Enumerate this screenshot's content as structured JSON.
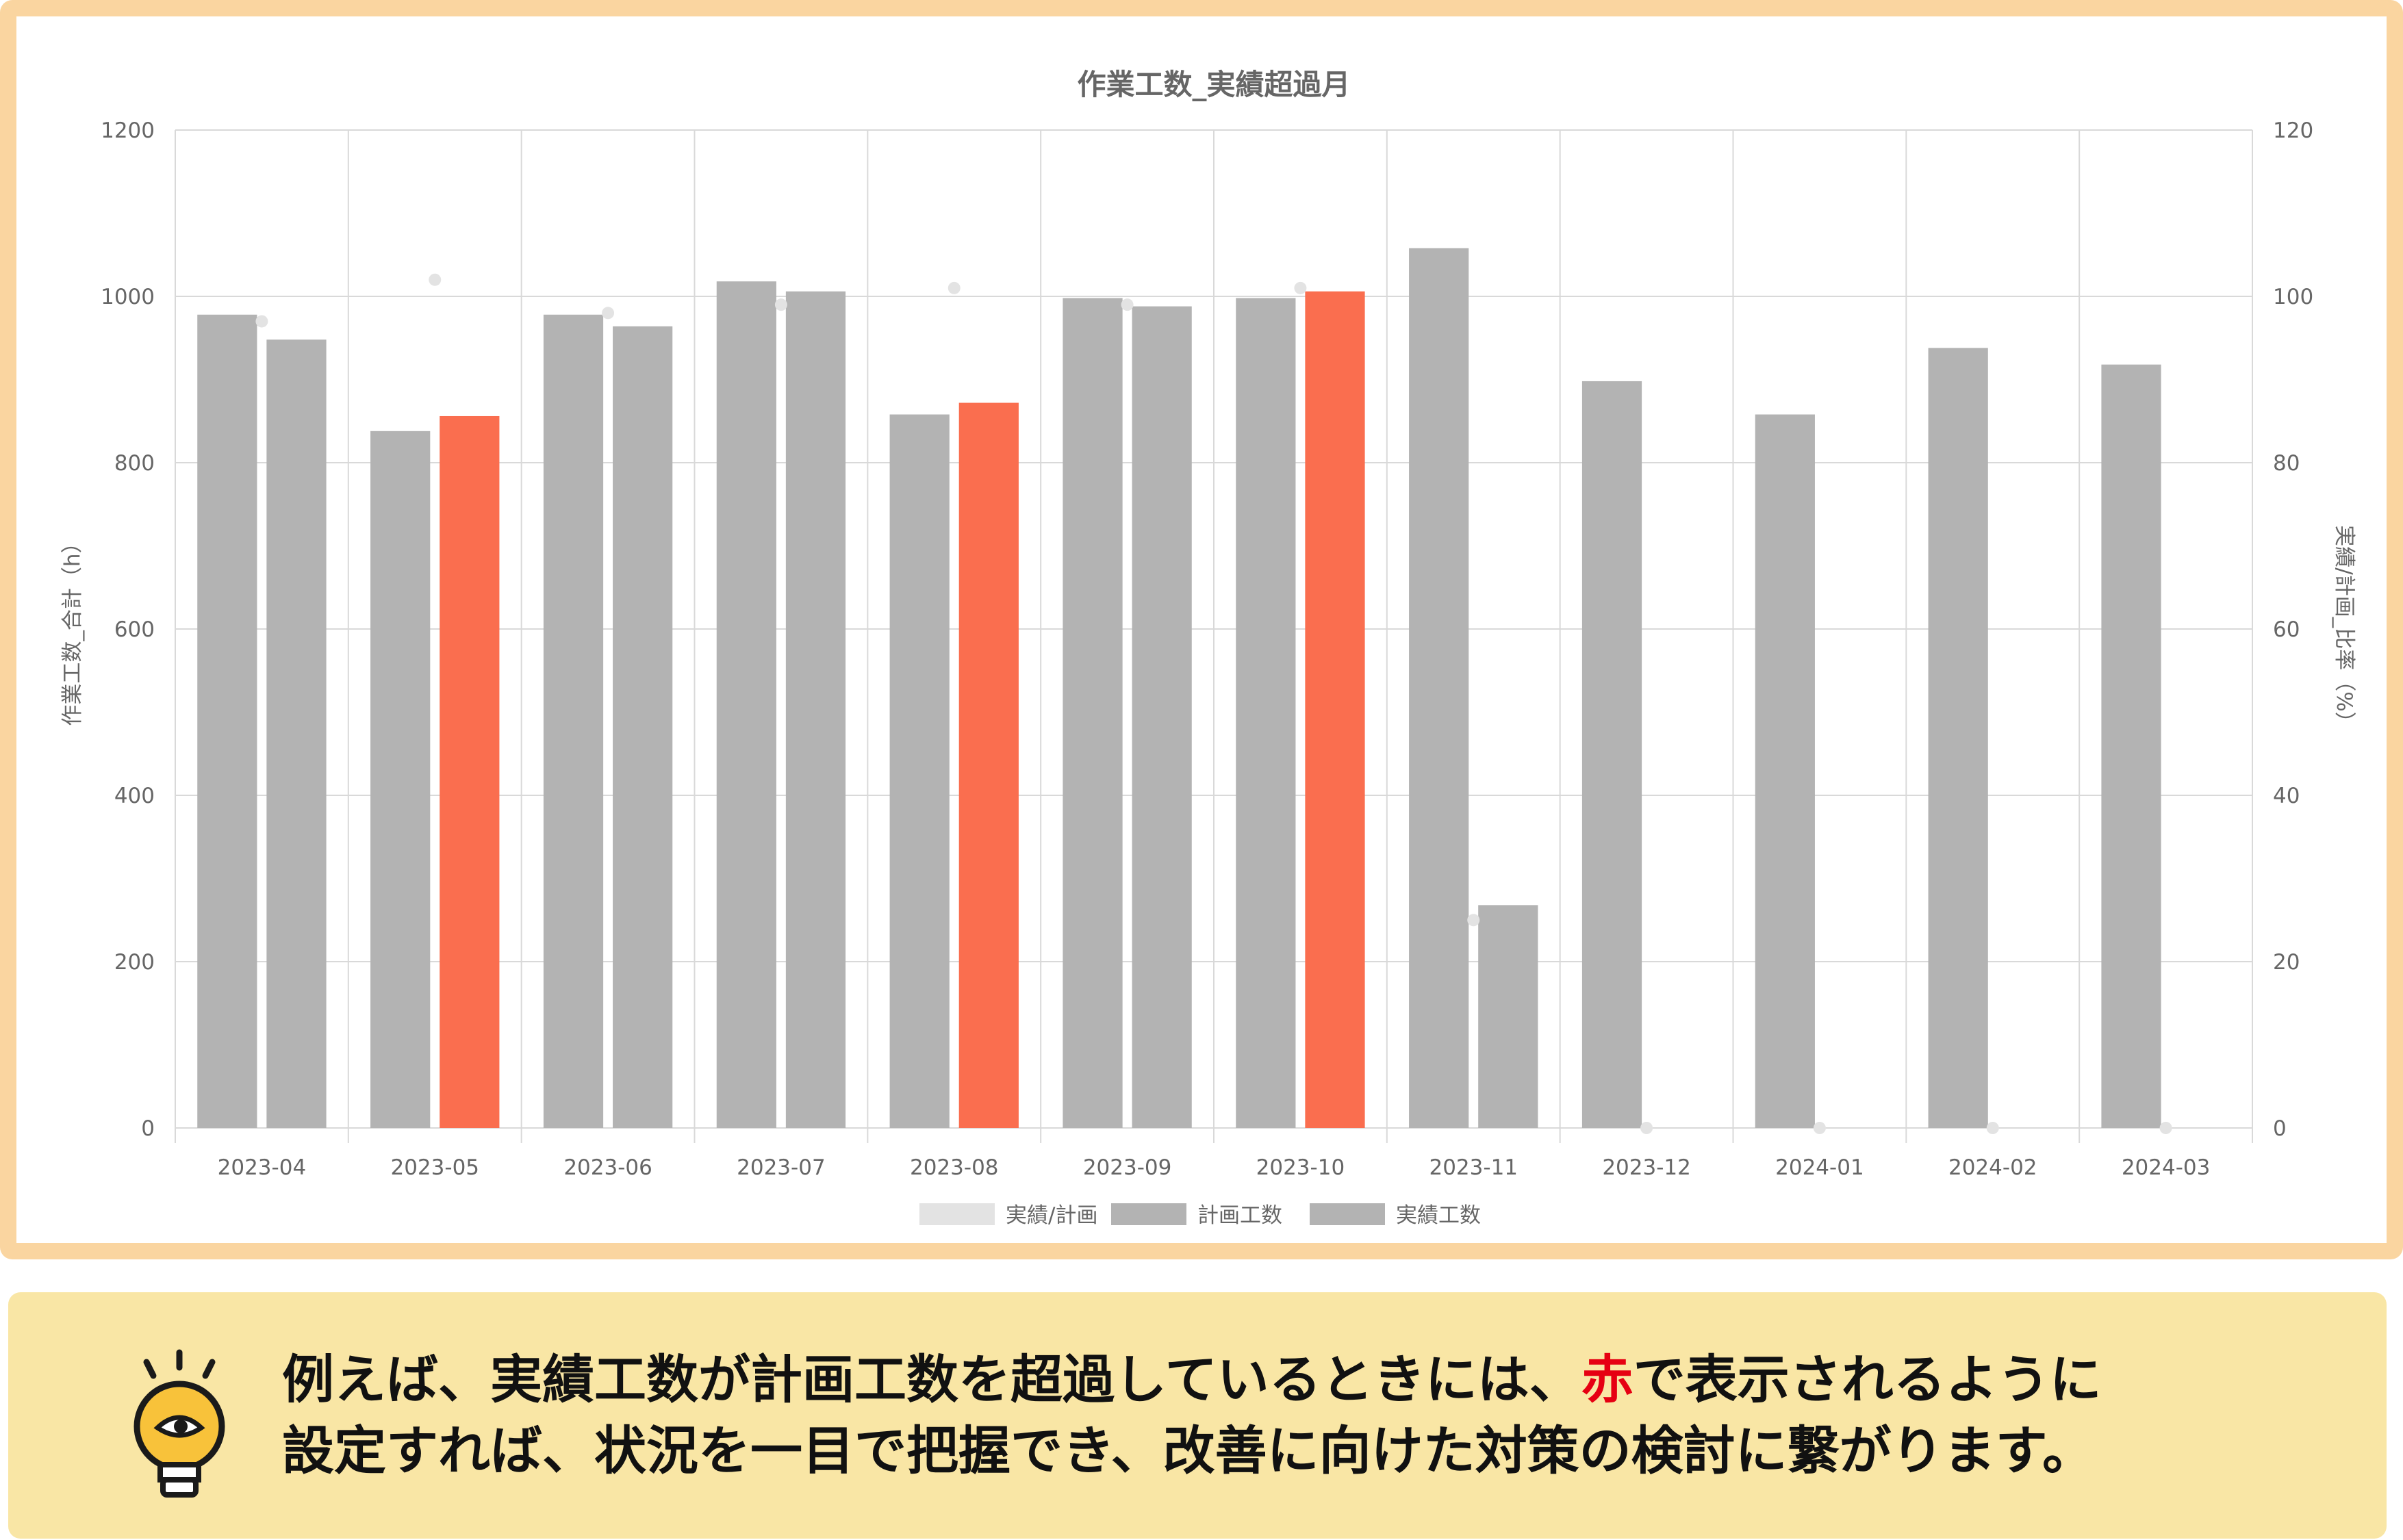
{
  "colors": {
    "card_border": "#fad5a0",
    "note_background": "#f9e6a5",
    "bar_default": "#b3b3b3",
    "bar_exceeded": "#fa6e4f",
    "ratio_point": "#e3e3e3",
    "grid": "#d9d9d9",
    "accent_text": "#e60012"
  },
  "chart_data": {
    "type": "bar",
    "title": "作業工数_実績超過月",
    "xlabel": "",
    "ylabel": "作業工数_合計（h）",
    "ylabel_right": "実績/計画_比率（%）",
    "ylim": [
      0,
      1200
    ],
    "ylim_right": [
      0,
      120
    ],
    "yticks": [
      "0",
      "200",
      "400",
      "600",
      "800",
      "1000",
      "1200"
    ],
    "yticks_right": [
      "0",
      "20",
      "40",
      "60",
      "80",
      "100",
      "120"
    ],
    "grid": true,
    "legend_position": "bottom",
    "categories": [
      "2023-04",
      "2023-05",
      "2023-06",
      "2023-07",
      "2023-08",
      "2023-09",
      "2023-10",
      "2023-11",
      "2023-12",
      "2024-01",
      "2024-02",
      "2024-03"
    ],
    "series": [
      {
        "name": "実績/計画",
        "type": "scatter",
        "axis": "right",
        "color": "#e3e3e3",
        "values": [
          97,
          102,
          98,
          99,
          101,
          99,
          101,
          25,
          0,
          0,
          0,
          0
        ]
      },
      {
        "name": "計画工数",
        "type": "bar",
        "axis": "left",
        "color": "#b3b3b3",
        "values": [
          978,
          838,
          978,
          1018,
          858,
          998,
          998,
          1058,
          898,
          858,
          938,
          918
        ]
      },
      {
        "name": "実績工数",
        "type": "bar",
        "axis": "left",
        "color": "#b3b3b3",
        "highlight_color": "#fa6e4f",
        "values": [
          948,
          856,
          964,
          1006,
          872,
          988,
          1006,
          268,
          0,
          0,
          0,
          0
        ]
      }
    ]
  },
  "note": {
    "line1_before": "例えば、実績工数が計画工数を超過しているときには、",
    "line1_accent": "赤",
    "line1_after": "で表示されるように",
    "line2": "設定すれば、状況を一目で把握でき、改善に向けた対策の検討に繋がります。",
    "icon": "lightbulb-eye-icon"
  }
}
